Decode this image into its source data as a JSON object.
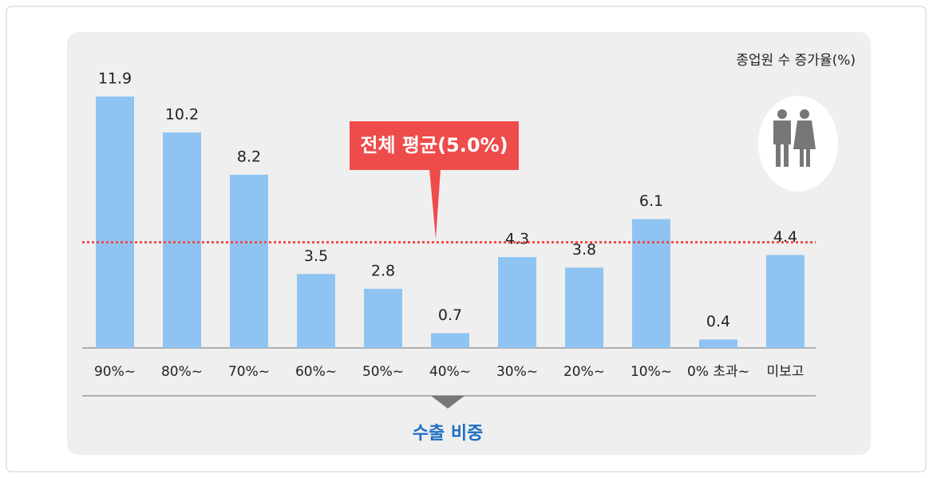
{
  "chart_data": {
    "type": "bar",
    "unit_label": "종업원 수 증가율(%)",
    "xlabel": "수출 비중",
    "categories": [
      "90%~",
      "80%~",
      "70%~",
      "60%~",
      "50%~",
      "40%~",
      "30%~",
      "20%~",
      "10%~",
      "0% 초과~",
      "미보고"
    ],
    "values": [
      11.9,
      10.2,
      8.2,
      3.5,
      2.8,
      0.7,
      4.3,
      3.8,
      6.1,
      0.4,
      4.4
    ],
    "color": "#8fc4f2",
    "average": {
      "value": 5.0,
      "label": "전체 평균(5.0%)",
      "color": "#ee4b4b"
    }
  }
}
